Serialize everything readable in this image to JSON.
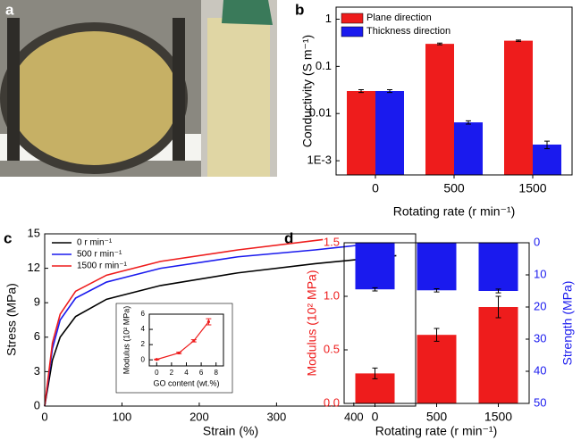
{
  "panels": [
    "a",
    "b",
    "c",
    "d"
  ],
  "chart_data": [
    {
      "type": "bar",
      "log_y": true,
      "categories": [
        "0",
        "500",
        "1500"
      ],
      "ylabel": "Conductivity (S m⁻¹)",
      "xlabel": "Rotating rate (r min⁻¹)",
      "ylim": [
        0.0005,
        1.8
      ],
      "yticks": [
        1,
        0.1,
        0.01,
        {
          "value": 0.001,
          "label": "1E-3"
        }
      ],
      "legend": "upper left",
      "series": [
        {
          "name": "Plane direction",
          "color": "#ee1c1c",
          "values": [
            0.03,
            0.3,
            0.35
          ],
          "errors": [
            0.002,
            0.012,
            0.012
          ]
        },
        {
          "name": "Thickness direction",
          "color": "#1a1aee",
          "values": [
            0.03,
            0.0065,
            0.0022
          ],
          "errors": [
            0.002,
            0.0005,
            0.0004
          ]
        }
      ]
    },
    {
      "type": "line",
      "xlabel": "Strain (%)",
      "ylabel": "Stress (MPa)",
      "xlim": [
        0,
        480
      ],
      "xticks": [
        0,
        100,
        200,
        300,
        400
      ],
      "ylim": [
        0,
        15
      ],
      "yticks": [
        0,
        3,
        6,
        9,
        12,
        15
      ],
      "legend": "upper left",
      "series": [
        {
          "name": "0 r min⁻¹",
          "color": "#000000",
          "x": [
            0,
            10,
            20,
            40,
            80,
            150,
            250,
            350,
            455
          ],
          "values": [
            0,
            4,
            6,
            7.8,
            9.3,
            10.5,
            11.6,
            12.4,
            13.1
          ]
        },
        {
          "name": "500 r min⁻¹",
          "color": "#1a1aee",
          "x": [
            0,
            10,
            20,
            40,
            80,
            150,
            250,
            350,
            405
          ],
          "values": [
            0,
            5,
            7.5,
            9.4,
            10.8,
            12,
            13,
            13.6,
            14
          ]
        },
        {
          "name": "1500 r min⁻¹",
          "color": "#ee1c1c",
          "x": [
            0,
            10,
            20,
            40,
            80,
            150,
            250,
            360
          ],
          "values": [
            0,
            5.5,
            8,
            10,
            11.4,
            12.6,
            13.6,
            14.5
          ]
        }
      ],
      "inset": {
        "type": "line",
        "xlabel": "GO content (wt.%)",
        "ylabel": "Modulus (10² MPa)",
        "xlim": [
          -1,
          9
        ],
        "xticks": [
          0,
          2,
          4,
          6,
          8
        ],
        "ylim": [
          -0.8,
          6
        ],
        "yticks": [
          0,
          2,
          4,
          6
        ],
        "color": "#ee1c1c",
        "x": [
          0,
          3,
          5,
          7
        ],
        "values": [
          0.05,
          0.9,
          2.5,
          5
        ],
        "errors": [
          0.05,
          0.1,
          0.15,
          0.4
        ]
      }
    },
    {
      "type": "bar",
      "categories": [
        "0",
        "500",
        "1500"
      ],
      "xlabel": "Rotating rate (r min⁻¹)",
      "ylabel": "Modulus (10² MPa)",
      "y2label": "Strength (MPa)",
      "ylim": [
        0,
        1.5
      ],
      "yticks": [
        {
          "value": 0,
          "label": "0.0"
        },
        0.5,
        {
          "value": 1,
          "label": "1.0"
        },
        1.5
      ],
      "y2lim": [
        50,
        0
      ],
      "y2ticks": [
        0,
        10,
        20,
        30,
        40,
        50
      ],
      "ycolor": "#ee1c1c",
      "y2color": "#1a1aee",
      "series": [
        {
          "name": "Modulus",
          "color": "#ee1c1c",
          "values": [
            0.28,
            0.64,
            0.9
          ],
          "errors": [
            0.05,
            0.06,
            0.1
          ]
        },
        {
          "name": "Strength",
          "color": "#1a1aee",
          "axis": "y2",
          "values": [
            14.5,
            14.8,
            15
          ],
          "errors": [
            0.5,
            0.5,
            0.6
          ]
        }
      ]
    }
  ]
}
